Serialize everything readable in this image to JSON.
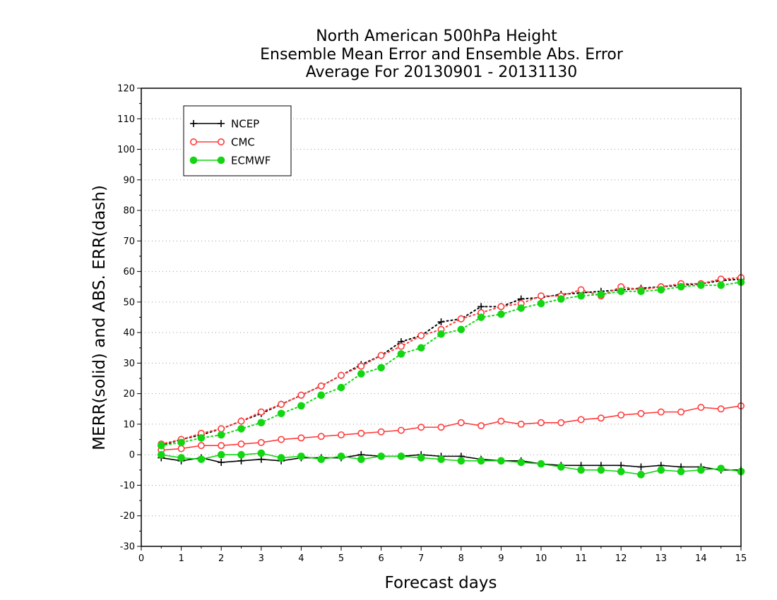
{
  "chart_data": {
    "type": "line",
    "title_lines": [
      "North American 500hPa Height",
      "Ensemble Mean Error and Ensemble Abs. Error",
      "Average For 20130901 - 20131130"
    ],
    "xlabel": "Forecast days",
    "ylabel": "MERR(solid) and ABS. ERR(dash)",
    "xlim": [
      0,
      15
    ],
    "ylim": [
      -30,
      120
    ],
    "x_ticks": [
      "0",
      "1",
      "2",
      "3",
      "4",
      "5",
      "6",
      "7",
      "8",
      "9",
      "10",
      "11",
      "12",
      "13",
      "14",
      "15"
    ],
    "y_ticks": [
      "-30",
      "-20",
      "-10",
      "0",
      "10",
      "20",
      "30",
      "40",
      "50",
      "60",
      "70",
      "80",
      "90",
      "100",
      "110",
      "120"
    ],
    "grid": true,
    "legend_position": "top-left",
    "x": [
      0.5,
      1,
      1.5,
      2,
      2.5,
      3,
      3.5,
      4,
      4.5,
      5,
      5.5,
      6,
      6.5,
      7,
      7.5,
      8,
      8.5,
      9,
      9.5,
      10,
      10.5,
      11,
      11.5,
      12,
      12.5,
      13,
      13.5,
      14,
      14.5,
      15
    ],
    "series": [
      {
        "name": "NCEP",
        "color": "#000000",
        "marker": "plus",
        "mean_error": [
          -1,
          -2,
          -1,
          -2.5,
          -2,
          -1.5,
          -2,
          -1,
          -1,
          -1,
          0,
          -0.5,
          -0.5,
          0,
          -0.5,
          -0.5,
          -1.5,
          -2,
          -2,
          -3,
          -3.5,
          -3.5,
          -3.5,
          -3.5,
          -4,
          -3.5,
          -4,
          -4,
          -5,
          -5
        ],
        "abs_error": [
          3,
          5,
          6.5,
          8.5,
          11,
          13.5,
          16.5,
          19.5,
          22.5,
          26,
          29.5,
          32.5,
          37,
          39,
          43.5,
          44.5,
          48.5,
          48.5,
          51,
          51.5,
          52.5,
          53,
          53.5,
          54,
          54.5,
          55,
          55.5,
          56,
          57,
          57.5
        ]
      },
      {
        "name": "CMC",
        "color": "#ff3b3b",
        "marker": "open-circle",
        "mean_error": [
          1.5,
          2,
          3,
          3,
          3.5,
          4,
          5,
          5.5,
          6,
          6.5,
          7,
          7.5,
          8,
          9,
          9,
          10.5,
          9.5,
          11,
          10,
          10.5,
          10.5,
          11.5,
          12,
          13,
          13.5,
          14,
          14,
          15.5,
          15,
          16
        ],
        "abs_error": [
          3.5,
          5,
          7,
          8.5,
          11,
          14,
          16.5,
          19.5,
          22.5,
          26,
          29,
          32.5,
          35.5,
          39,
          41,
          44.5,
          46.5,
          48.5,
          49.5,
          52,
          52,
          54,
          52,
          55,
          54,
          55,
          56,
          56,
          57.5,
          58
        ]
      },
      {
        "name": "ECMWF",
        "color": "#12d612",
        "marker": "filled-circle",
        "mean_error": [
          0,
          -1,
          -1.5,
          0,
          0,
          0.5,
          -1,
          -0.5,
          -1.5,
          -0.5,
          -1.5,
          -0.5,
          -0.5,
          -1,
          -1.5,
          -2,
          -2,
          -2,
          -2.5,
          -3,
          -4,
          -5,
          -5,
          -5.5,
          -6.5,
          -5,
          -5.5,
          -5,
          -4.5,
          -5.5
        ],
        "abs_error": [
          3,
          4,
          5.5,
          6.5,
          8.5,
          10.5,
          13.5,
          16,
          19.5,
          22,
          26.5,
          28.5,
          33,
          35,
          39.5,
          41,
          45,
          46,
          48,
          49.5,
          51,
          52,
          52.5,
          53.5,
          53.5,
          54,
          55,
          55.5,
          55.5,
          56.5
        ]
      }
    ]
  }
}
